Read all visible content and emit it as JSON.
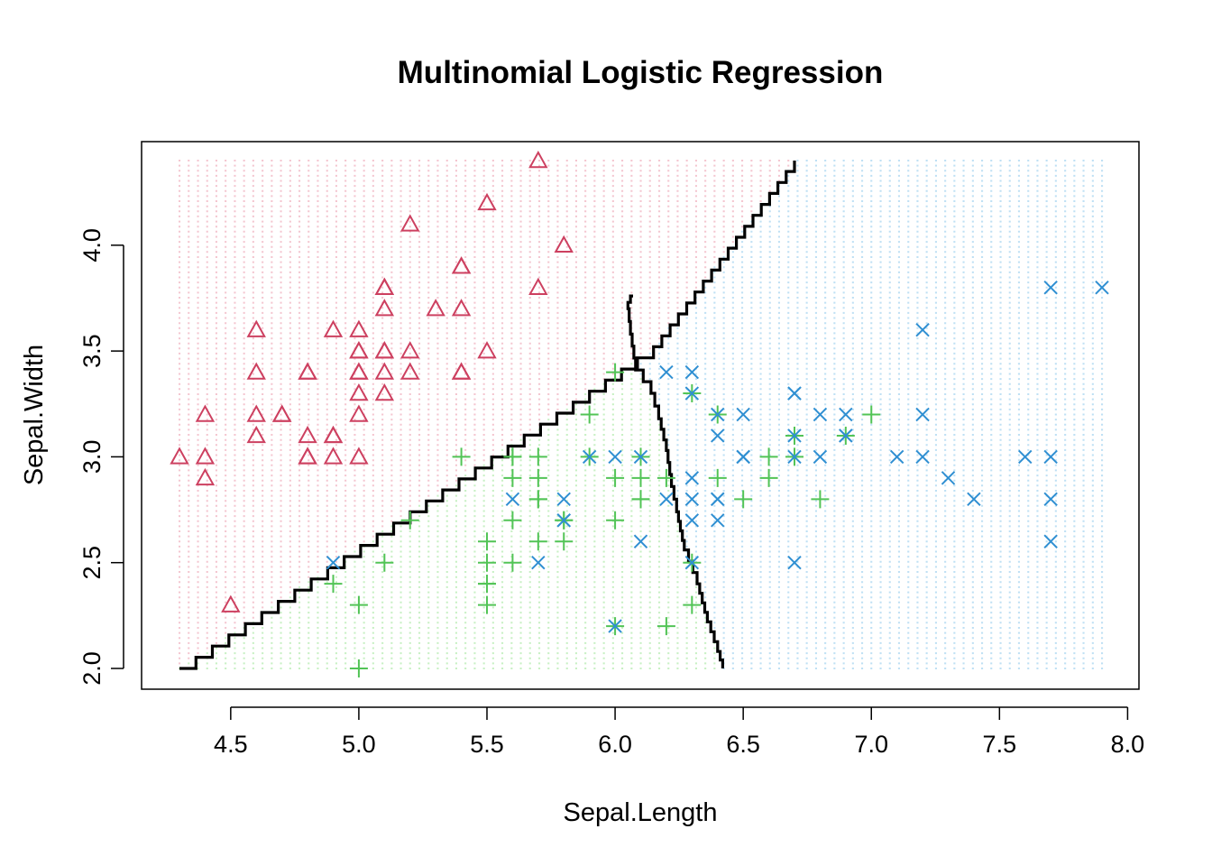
{
  "chart_data": {
    "type": "scatter",
    "title": "Multinomial Logistic Regression",
    "xlabel": "Sepal.Length",
    "ylabel": "Sepal.Width",
    "xlim": [
      4.3,
      7.9
    ],
    "ylim": [
      2.0,
      4.4
    ],
    "xticks": [
      4.5,
      5.0,
      5.5,
      6.0,
      6.5,
      7.0,
      7.5,
      8.0
    ],
    "xtick_labels": [
      "4.5",
      "5.0",
      "5.5",
      "6.0",
      "6.5",
      "7.0",
      "7.5",
      "8.0"
    ],
    "yticks": [
      2.0,
      2.5,
      3.0,
      3.5,
      4.0
    ],
    "ytick_labels": [
      "2.0",
      "2.5",
      "3.0",
      "3.5",
      "4.0"
    ],
    "grid": false,
    "background_grid": {
      "x_step": 0.036,
      "y_step": 0.024,
      "colors": [
        "#f4c6d0",
        "#c8f0c4",
        "#bfe0f4"
      ]
    },
    "series": [
      {
        "marker": "triangle",
        "color": "#cd4060",
        "points": [
          [
            5.1,
            3.5
          ],
          [
            4.9,
            3.0
          ],
          [
            4.7,
            3.2
          ],
          [
            4.6,
            3.1
          ],
          [
            5.0,
            3.6
          ],
          [
            5.4,
            3.9
          ],
          [
            4.6,
            3.4
          ],
          [
            5.0,
            3.4
          ],
          [
            4.4,
            2.9
          ],
          [
            4.9,
            3.1
          ],
          [
            5.4,
            3.7
          ],
          [
            4.8,
            3.4
          ],
          [
            4.8,
            3.0
          ],
          [
            4.3,
            3.0
          ],
          [
            5.8,
            4.0
          ],
          [
            5.7,
            4.4
          ],
          [
            5.4,
            3.9
          ],
          [
            5.1,
            3.5
          ],
          [
            5.7,
            3.8
          ],
          [
            5.1,
            3.8
          ],
          [
            5.4,
            3.4
          ],
          [
            5.1,
            3.7
          ],
          [
            4.6,
            3.6
          ],
          [
            5.1,
            3.3
          ],
          [
            4.8,
            3.4
          ],
          [
            5.0,
            3.0
          ],
          [
            5.0,
            3.4
          ],
          [
            5.2,
            3.5
          ],
          [
            5.2,
            3.4
          ],
          [
            4.7,
            3.2
          ],
          [
            4.8,
            3.1
          ],
          [
            5.4,
            3.4
          ],
          [
            5.2,
            4.1
          ],
          [
            5.5,
            4.2
          ],
          [
            4.9,
            3.1
          ],
          [
            5.0,
            3.2
          ],
          [
            5.5,
            3.5
          ],
          [
            4.9,
            3.6
          ],
          [
            4.4,
            3.0
          ],
          [
            5.1,
            3.4
          ],
          [
            5.0,
            3.5
          ],
          [
            4.5,
            2.3
          ],
          [
            4.4,
            3.2
          ],
          [
            5.0,
            3.5
          ],
          [
            5.1,
            3.8
          ],
          [
            4.8,
            3.0
          ],
          [
            5.1,
            3.8
          ],
          [
            4.6,
            3.2
          ],
          [
            5.3,
            3.7
          ],
          [
            5.0,
            3.3
          ]
        ]
      },
      {
        "marker": "plus",
        "color": "#52c456",
        "points": [
          [
            7.0,
            3.2
          ],
          [
            6.4,
            3.2
          ],
          [
            6.9,
            3.1
          ],
          [
            5.5,
            2.3
          ],
          [
            6.5,
            2.8
          ],
          [
            5.7,
            2.8
          ],
          [
            6.3,
            3.3
          ],
          [
            4.9,
            2.4
          ],
          [
            6.6,
            2.9
          ],
          [
            5.2,
            2.7
          ],
          [
            5.0,
            2.0
          ],
          [
            5.9,
            3.0
          ],
          [
            6.0,
            2.2
          ],
          [
            6.1,
            2.9
          ],
          [
            5.6,
            2.9
          ],
          [
            6.7,
            3.1
          ],
          [
            5.6,
            3.0
          ],
          [
            5.8,
            2.7
          ],
          [
            6.2,
            2.2
          ],
          [
            5.6,
            2.5
          ],
          [
            5.9,
            3.2
          ],
          [
            6.1,
            2.8
          ],
          [
            6.3,
            2.5
          ],
          [
            6.1,
            2.8
          ],
          [
            6.4,
            2.9
          ],
          [
            6.6,
            3.0
          ],
          [
            6.8,
            2.8
          ],
          [
            6.7,
            3.0
          ],
          [
            6.0,
            2.9
          ],
          [
            5.7,
            2.6
          ],
          [
            5.5,
            2.4
          ],
          [
            5.5,
            2.4
          ],
          [
            5.8,
            2.7
          ],
          [
            6.0,
            2.7
          ],
          [
            5.4,
            3.0
          ],
          [
            6.0,
            3.4
          ],
          [
            6.7,
            3.1
          ],
          [
            6.3,
            2.3
          ],
          [
            5.6,
            3.0
          ],
          [
            5.5,
            2.5
          ],
          [
            5.5,
            2.6
          ],
          [
            6.1,
            3.0
          ],
          [
            5.8,
            2.6
          ],
          [
            5.0,
            2.3
          ],
          [
            5.6,
            2.7
          ],
          [
            5.7,
            3.0
          ],
          [
            5.7,
            2.9
          ],
          [
            6.2,
            2.9
          ],
          [
            5.1,
            2.5
          ],
          [
            5.7,
            2.8
          ]
        ]
      },
      {
        "marker": "cross",
        "color": "#2f8fd2",
        "points": [
          [
            6.3,
            3.3
          ],
          [
            5.8,
            2.7
          ],
          [
            7.1,
            3.0
          ],
          [
            6.3,
            2.9
          ],
          [
            6.5,
            3.0
          ],
          [
            7.6,
            3.0
          ],
          [
            4.9,
            2.5
          ],
          [
            7.3,
            2.9
          ],
          [
            6.7,
            2.5
          ],
          [
            7.2,
            3.6
          ],
          [
            6.5,
            3.2
          ],
          [
            6.4,
            2.7
          ],
          [
            6.8,
            3.0
          ],
          [
            5.7,
            2.5
          ],
          [
            5.8,
            2.8
          ],
          [
            6.4,
            3.2
          ],
          [
            6.5,
            3.0
          ],
          [
            7.7,
            3.8
          ],
          [
            7.7,
            2.6
          ],
          [
            6.0,
            2.2
          ],
          [
            6.9,
            3.2
          ],
          [
            5.6,
            2.8
          ],
          [
            7.7,
            2.8
          ],
          [
            6.3,
            2.7
          ],
          [
            6.7,
            3.3
          ],
          [
            7.2,
            3.2
          ],
          [
            6.2,
            2.8
          ],
          [
            6.1,
            3.0
          ],
          [
            6.4,
            2.8
          ],
          [
            7.2,
            3.0
          ],
          [
            7.4,
            2.8
          ],
          [
            7.9,
            3.8
          ],
          [
            6.4,
            2.8
          ],
          [
            6.3,
            2.8
          ],
          [
            6.1,
            2.6
          ],
          [
            7.7,
            3.0
          ],
          [
            6.3,
            3.4
          ],
          [
            6.4,
            3.1
          ],
          [
            6.0,
            3.0
          ],
          [
            6.9,
            3.1
          ],
          [
            6.7,
            3.1
          ],
          [
            6.9,
            3.1
          ],
          [
            5.8,
            2.7
          ],
          [
            6.8,
            3.2
          ],
          [
            6.7,
            3.3
          ],
          [
            6.7,
            3.0
          ],
          [
            6.3,
            2.5
          ],
          [
            6.5,
            3.0
          ],
          [
            6.2,
            3.4
          ],
          [
            5.9,
            3.0
          ]
        ]
      }
    ],
    "boundaries": [
      {
        "color": "#000000",
        "points": [
          [
            4.3,
            2.0
          ],
          [
            5.2,
            2.74
          ],
          [
            5.9,
            3.31
          ],
          [
            6.15,
            3.52
          ],
          [
            6.7,
            4.4
          ]
        ]
      },
      {
        "color": "#000000",
        "points": [
          [
            6.07,
            3.76
          ],
          [
            6.05,
            3.7
          ],
          [
            6.06,
            3.58
          ],
          [
            6.08,
            3.41
          ],
          [
            6.14,
            3.3
          ],
          [
            6.17,
            3.18
          ],
          [
            6.2,
            3.03
          ],
          [
            6.22,
            2.86
          ],
          [
            6.24,
            2.74
          ],
          [
            6.27,
            2.56
          ],
          [
            6.32,
            2.4
          ],
          [
            6.36,
            2.22
          ],
          [
            6.4,
            2.08
          ],
          [
            6.42,
            2.0
          ]
        ]
      }
    ]
  }
}
